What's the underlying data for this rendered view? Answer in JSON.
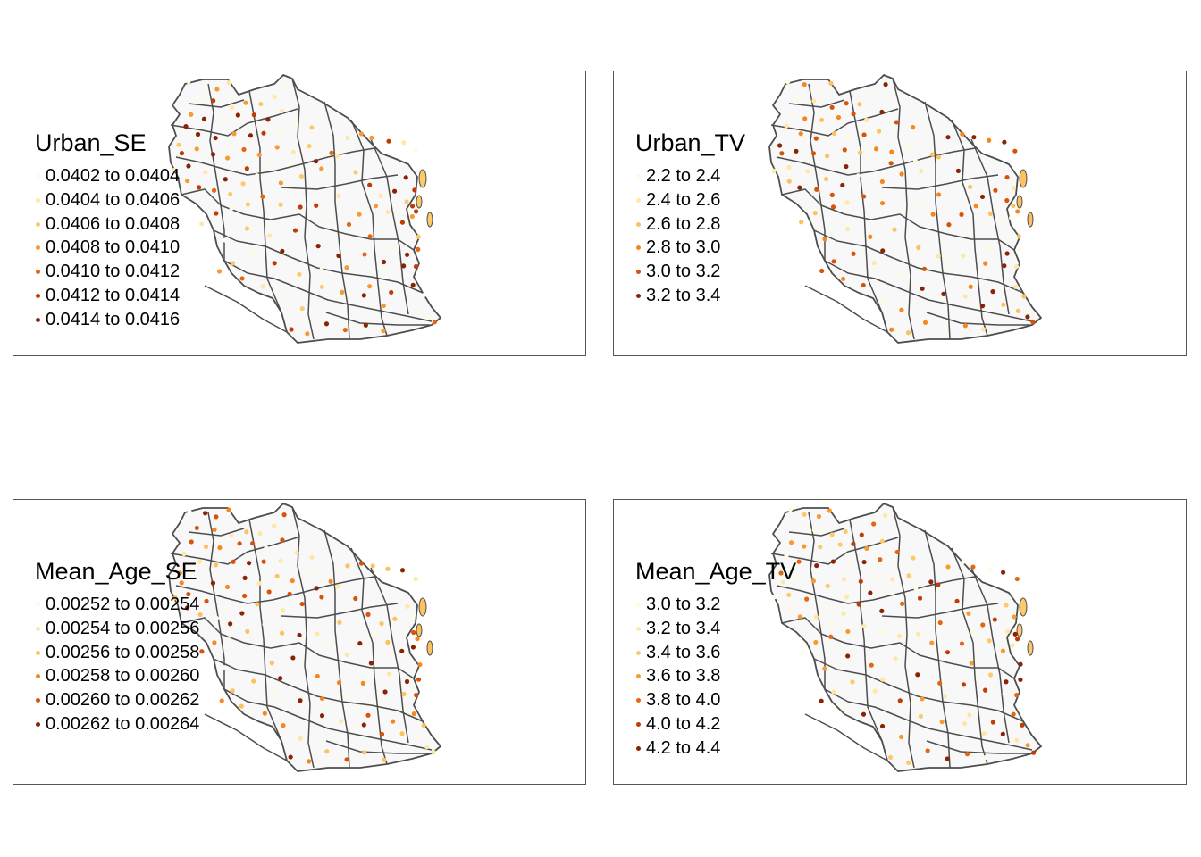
{
  "map_colors": {
    "land_fill": "#f8f8f8",
    "boundary": "#4d4d4d",
    "frame": "#555555"
  },
  "panels": [
    {
      "title": "Urban_SE",
      "seed": 11,
      "legend": [
        {
          "label": "0.0402 to 0.0404",
          "color": "#fffbe3"
        },
        {
          "label": "0.0404 to 0.0406",
          "color": "#fee8a6"
        },
        {
          "label": "0.0406 to 0.0408",
          "color": "#fdca6b"
        },
        {
          "label": "0.0408 to 0.0410",
          "color": "#f99a31"
        },
        {
          "label": "0.0410 to 0.0412",
          "color": "#e6650f"
        },
        {
          "label": "0.0412 to 0.0414",
          "color": "#bf3c04"
        },
        {
          "label": "0.0414 to 0.0416",
          "color": "#8a2303"
        }
      ]
    },
    {
      "title": "Urban_TV",
      "seed": 23,
      "legend": [
        {
          "label": "2.2 to 2.4",
          "color": "#fffbe3"
        },
        {
          "label": "2.4 to 2.6",
          "color": "#fee8a6"
        },
        {
          "label": "2.6 to 2.8",
          "color": "#fdc15e"
        },
        {
          "label": "2.8 to 3.0",
          "color": "#f7871d"
        },
        {
          "label": "3.0 to 3.2",
          "color": "#d7530a"
        },
        {
          "label": "3.2 to 3.4",
          "color": "#8a2303"
        }
      ]
    },
    {
      "title": "Mean_Age_SE",
      "seed": 37,
      "legend": [
        {
          "label": "0.00252 to 0.00254",
          "color": "#fffbe3"
        },
        {
          "label": "0.00254 to 0.00256",
          "color": "#fee8a6"
        },
        {
          "label": "0.00256 to 0.00258",
          "color": "#fdc15e"
        },
        {
          "label": "0.00258 to 0.00260",
          "color": "#f7871d"
        },
        {
          "label": "0.00260 to 0.00262",
          "color": "#d7530a"
        },
        {
          "label": "0.00262 to 0.00264",
          "color": "#8a2303"
        }
      ]
    },
    {
      "title": "Mean_Age_TV",
      "seed": 53,
      "legend": [
        {
          "label": "3.0 to 3.2",
          "color": "#fffbe3"
        },
        {
          "label": "3.2 to 3.4",
          "color": "#fee8a6"
        },
        {
          "label": "3.4 to 3.6",
          "color": "#fdca6b"
        },
        {
          "label": "3.6 to 3.8",
          "color": "#f99a31"
        },
        {
          "label": "3.8 to 4.0",
          "color": "#e6650f"
        },
        {
          "label": "4.0 to 4.2",
          "color": "#bf3c04"
        },
        {
          "label": "4.2 to 4.4",
          "color": "#8a2303"
        }
      ]
    }
  ]
}
